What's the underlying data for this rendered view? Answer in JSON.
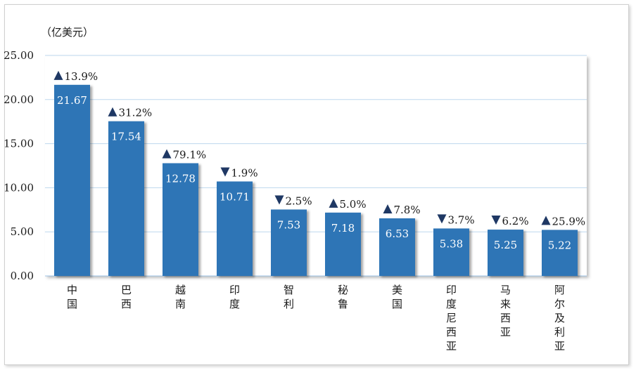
{
  "chart_data": {
    "type": "bar",
    "unit_label": "（亿美元）",
    "categories": [
      "中国",
      "巴西",
      "越南",
      "印度",
      "智利",
      "秘鲁",
      "美国",
      "印度尼西亚",
      "马来西亚",
      "阿尔及利亚"
    ],
    "values": [
      21.67,
      17.54,
      12.78,
      10.71,
      7.53,
      7.18,
      6.53,
      5.38,
      5.25,
      5.22
    ],
    "value_labels": [
      "21.67",
      "17.54",
      "12.78",
      "10.71",
      "7.53",
      "7.18",
      "6.53",
      "5.38",
      "5.25",
      "5.22"
    ],
    "changes": [
      {
        "direction": "up",
        "label": "13.9%"
      },
      {
        "direction": "up",
        "label": "31.2%"
      },
      {
        "direction": "up",
        "label": "79.1%"
      },
      {
        "direction": "down",
        "label": "1.9%"
      },
      {
        "direction": "down",
        "label": "2.5%"
      },
      {
        "direction": "up",
        "label": "5.0%"
      },
      {
        "direction": "up",
        "label": "7.8%"
      },
      {
        "direction": "down",
        "label": "3.7%"
      },
      {
        "direction": "down",
        "label": "6.2%"
      },
      {
        "direction": "up",
        "label": "25.9%"
      }
    ],
    "y_ticks": [
      "0.00",
      "5.00",
      "10.00",
      "15.00",
      "20.00",
      "25.00"
    ],
    "ylim": [
      0,
      25
    ],
    "grid": true,
    "bar_color": "#2e75b6",
    "marker_color": "#1f3864"
  }
}
